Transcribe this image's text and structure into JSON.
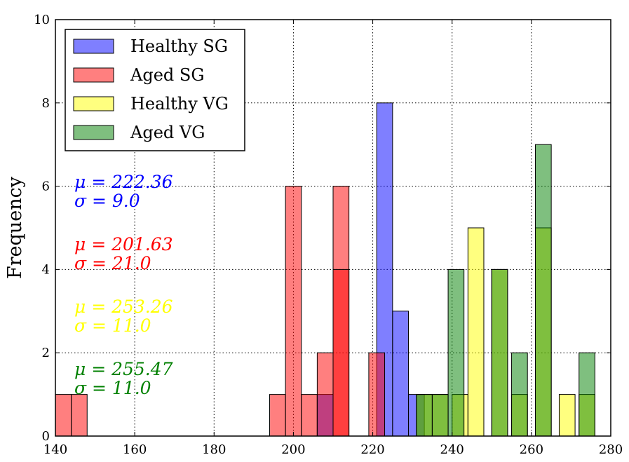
{
  "chart_data": {
    "type": "bar",
    "title": "",
    "xlabel": "",
    "ylabel": "Frequency",
    "xlim": [
      140,
      280
    ],
    "ylim": [
      0,
      10
    ],
    "xticks": [
      "140",
      "160",
      "180",
      "200",
      "220",
      "240",
      "260",
      "280"
    ],
    "yticks": [
      "0",
      "2",
      "4",
      "6",
      "8",
      "10"
    ],
    "grid": true,
    "bin_width": 4,
    "legend": {
      "position": "top-left",
      "entries": [
        {
          "label": "Healthy SG",
          "color": "#0000ff"
        },
        {
          "label": "Aged SG",
          "color": "#ff0000"
        },
        {
          "label": "Healthy VG",
          "color": "#ffff00"
        },
        {
          "label": "Aged VG",
          "color": "#008000"
        }
      ]
    },
    "series": [
      {
        "name": "Healthy SG",
        "color": "#0000ff",
        "bars": [
          [
            208,
            1
          ],
          [
            223,
            8
          ],
          [
            227,
            3
          ],
          [
            231,
            1
          ]
        ]
      },
      {
        "name": "Aged SG",
        "color": "#ff0000",
        "bars": [
          [
            142,
            1
          ],
          [
            146,
            1
          ],
          [
            196,
            1
          ],
          [
            200,
            6
          ],
          [
            204,
            1
          ],
          [
            208,
            2
          ],
          [
            212,
            6
          ],
          [
            221,
            2
          ]
        ]
      },
      {
        "name": "Healthy VG",
        "color": "#ffff00",
        "bars": [
          [
            233,
            1
          ],
          [
            237,
            1
          ],
          [
            242,
            1
          ],
          [
            246,
            5
          ],
          [
            252,
            4
          ],
          [
            257,
            1
          ],
          [
            263,
            5
          ],
          [
            269,
            1
          ],
          [
            274,
            1
          ]
        ]
      },
      {
        "name": "Aged VG",
        "color": "#008000",
        "bars": [
          [
            233,
            1
          ],
          [
            237,
            1
          ],
          [
            241,
            4
          ],
          [
            252,
            4
          ],
          [
            257,
            2
          ],
          [
            263,
            7
          ],
          [
            274,
            2
          ]
        ]
      }
    ],
    "overlay_bars": [
      {
        "series": "Aged SG",
        "color": "#ff0000",
        "bars": [
          [
            212,
            4
          ]
        ]
      }
    ],
    "annotations": [
      {
        "mu": "μ = 222.36",
        "sigma": "σ = 9.0",
        "color": "#0000ff"
      },
      {
        "mu": "μ = 201.63",
        "sigma": "σ = 21.0",
        "color": "#ff0000"
      },
      {
        "mu": "μ = 253.26",
        "sigma": "σ = 11.0",
        "color": "#ffff00"
      },
      {
        "mu": "μ = 255.47",
        "sigma": "σ = 11.0",
        "color": "#008000"
      }
    ]
  }
}
